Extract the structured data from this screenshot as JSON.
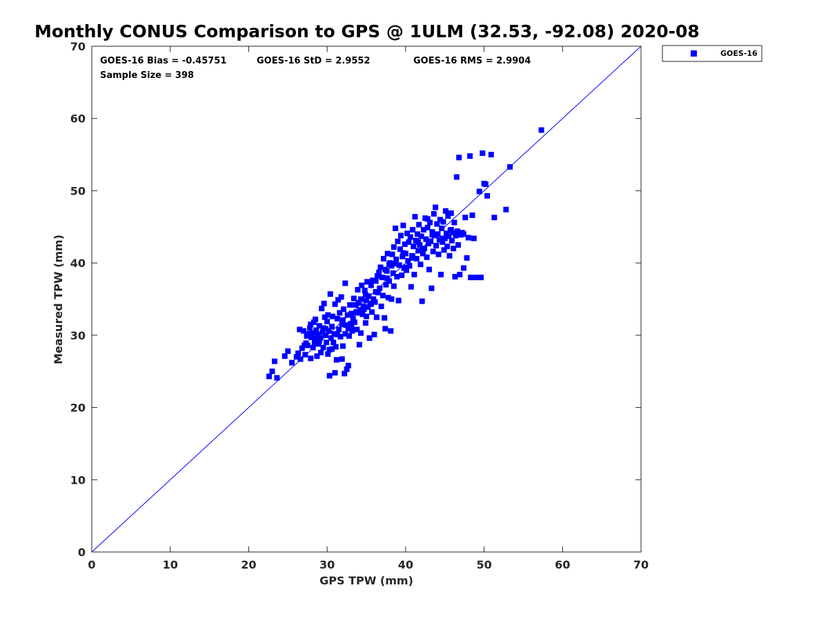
{
  "colors": {
    "series": "#0000ff",
    "axis": "#262626",
    "reference_line": "#0000ff"
  },
  "chart_data": {
    "type": "scatter",
    "title": "Monthly CONUS Comparison to GPS @ 1ULM (32.53, -92.08) 2020-08",
    "xlabel": "GPS TPW (mm)",
    "ylabel": "Measured TPW (mm)",
    "xlim": [
      0,
      70
    ],
    "ylim": [
      0,
      70
    ],
    "xticks": [
      "0",
      "10",
      "20",
      "30",
      "40",
      "50",
      "60",
      "70"
    ],
    "yticks": [
      "0",
      "10",
      "20",
      "30",
      "40",
      "50",
      "60",
      "70"
    ],
    "grid": false,
    "legend_position": "top-right outside",
    "reference_line": {
      "type": "one-to-one",
      "from": [
        0,
        0
      ],
      "to": [
        70,
        70
      ]
    },
    "stats": {
      "bias": "GOES-16 Bias = -0.45751",
      "std": "GOES-16 StD = 2.9552",
      "rms": "GOES-16 RMS = 2.9904",
      "sample_size": "Sample Size = 398"
    },
    "series": [
      {
        "name": "GOES-16",
        "marker": "square",
        "points": [
          [
            22.6,
            24.3
          ],
          [
            23.0,
            25.0
          ],
          [
            23.3,
            26.4
          ],
          [
            23.6,
            24.1
          ],
          [
            24.6,
            27.1
          ],
          [
            25.0,
            27.8
          ],
          [
            25.5,
            26.2
          ],
          [
            26.1,
            27.0
          ],
          [
            26.3,
            27.5
          ],
          [
            26.5,
            30.8
          ],
          [
            26.6,
            26.7
          ],
          [
            26.8,
            28.2
          ],
          [
            27.0,
            30.6
          ],
          [
            27.1,
            28.6
          ],
          [
            27.2,
            27.3
          ],
          [
            27.4,
            29.9
          ],
          [
            27.5,
            28.6
          ],
          [
            27.6,
            30.2
          ],
          [
            27.8,
            31.0
          ],
          [
            27.9,
            31.5
          ],
          [
            27.9,
            26.8
          ],
          [
            28.0,
            29.7
          ],
          [
            28.1,
            30.3
          ],
          [
            28.2,
            28.3
          ],
          [
            28.3,
            31.8
          ],
          [
            28.4,
            29.0
          ],
          [
            28.5,
            32.2
          ],
          [
            28.6,
            30.7
          ],
          [
            28.7,
            27.1
          ],
          [
            28.8,
            30.1
          ],
          [
            28.9,
            28.8
          ],
          [
            29.0,
            31.3
          ],
          [
            29.1,
            29.6
          ],
          [
            29.2,
            27.6
          ],
          [
            29.3,
            33.7
          ],
          [
            29.4,
            30.4
          ],
          [
            29.5,
            31.0
          ],
          [
            29.5,
            28.3
          ],
          [
            29.6,
            34.4
          ],
          [
            29.7,
            32.5
          ],
          [
            29.8,
            30.0
          ],
          [
            29.9,
            29.0
          ],
          [
            30.0,
            31.9
          ],
          [
            30.1,
            27.4
          ],
          [
            30.1,
            32.8
          ],
          [
            30.2,
            30.6
          ],
          [
            30.3,
            28.0
          ],
          [
            30.3,
            24.4
          ],
          [
            30.4,
            35.7
          ],
          [
            30.5,
            29.6
          ],
          [
            30.6,
            31.2
          ],
          [
            30.7,
            32.6
          ],
          [
            30.8,
            29.0
          ],
          [
            30.9,
            30.2
          ],
          [
            31.0,
            34.3
          ],
          [
            31.0,
            24.8
          ],
          [
            31.1,
            28.4
          ],
          [
            31.2,
            26.6
          ],
          [
            31.3,
            32.3
          ],
          [
            31.4,
            34.9
          ],
          [
            31.5,
            30.8
          ],
          [
            31.6,
            33.1
          ],
          [
            31.7,
            29.8
          ],
          [
            31.8,
            35.3
          ],
          [
            31.9,
            26.7
          ],
          [
            31.9,
            31.5
          ],
          [
            32.0,
            28.5
          ],
          [
            32.1,
            33.6
          ],
          [
            32.2,
            24.7
          ],
          [
            32.3,
            37.2
          ],
          [
            32.3,
            30.2
          ],
          [
            32.4,
            31.4
          ],
          [
            32.5,
            25.3
          ],
          [
            32.6,
            32.8
          ],
          [
            32.7,
            30.9
          ],
          [
            32.7,
            25.8
          ],
          [
            32.8,
            29.9
          ],
          [
            32.9,
            34.2
          ],
          [
            33.0,
            31.6
          ],
          [
            33.1,
            33.0
          ],
          [
            33.2,
            30.6
          ],
          [
            33.3,
            32.3
          ],
          [
            33.4,
            35.1
          ],
          [
            33.5,
            31.8
          ],
          [
            33.6,
            34.2
          ],
          [
            33.7,
            33.2
          ],
          [
            33.8,
            30.8
          ],
          [
            33.9,
            36.3
          ],
          [
            34.0,
            34.5
          ],
          [
            34.1,
            28.7
          ],
          [
            34.2,
            33.5
          ],
          [
            34.3,
            35.0
          ],
          [
            34.3,
            30.3
          ],
          [
            34.4,
            36.9
          ],
          [
            34.5,
            32.9
          ],
          [
            34.6,
            34.0
          ],
          [
            34.7,
            33.6
          ],
          [
            34.8,
            36.2
          ],
          [
            34.9,
            31.7
          ],
          [
            35.0,
            34.8
          ],
          [
            35.0,
            32.6
          ],
          [
            35.1,
            37.4
          ],
          [
            35.2,
            33.9
          ],
          [
            35.3,
            35.4
          ],
          [
            35.4,
            29.6
          ],
          [
            35.5,
            34.4
          ],
          [
            35.6,
            36.9
          ],
          [
            35.7,
            33.2
          ],
          [
            35.8,
            37.6
          ],
          [
            35.9,
            35.0
          ],
          [
            36.0,
            30.1
          ],
          [
            36.1,
            34.6
          ],
          [
            36.2,
            37.5
          ],
          [
            36.3,
            32.5
          ],
          [
            36.4,
            38.2
          ],
          [
            36.5,
            35.9
          ],
          [
            36.6,
            38.7
          ],
          [
            36.7,
            36.5
          ],
          [
            36.8,
            39.4
          ],
          [
            36.9,
            34.0
          ],
          [
            37.0,
            38.0
          ],
          [
            37.1,
            35.5
          ],
          [
            37.2,
            40.6
          ],
          [
            37.3,
            32.4
          ],
          [
            37.4,
            39.1
          ],
          [
            37.4,
            30.9
          ],
          [
            37.5,
            37.0
          ],
          [
            37.6,
            38.9
          ],
          [
            37.7,
            41.3
          ],
          [
            37.8,
            35.2
          ],
          [
            37.9,
            37.5
          ],
          [
            38.0,
            40.0
          ],
          [
            38.1,
            30.6
          ],
          [
            38.2,
            39.6
          ],
          [
            38.2,
            35.0
          ],
          [
            38.3,
            41.2
          ],
          [
            38.4,
            38.6
          ],
          [
            38.5,
            42.2
          ],
          [
            38.6,
            39.9
          ],
          [
            38.7,
            44.8
          ],
          [
            38.8,
            40.5
          ],
          [
            38.9,
            38.1
          ],
          [
            39.0,
            43.0
          ],
          [
            39.1,
            34.8
          ],
          [
            39.2,
            39.7
          ],
          [
            39.3,
            41.9
          ],
          [
            39.4,
            43.8
          ],
          [
            39.5,
            38.3
          ],
          [
            39.6,
            40.9
          ],
          [
            39.7,
            45.2
          ],
          [
            39.8,
            39.3
          ],
          [
            39.9,
            42.6
          ],
          [
            40.0,
            41.3
          ],
          [
            40.1,
            39.0
          ],
          [
            40.2,
            44.1
          ],
          [
            40.3,
            40.3
          ],
          [
            40.4,
            42.9
          ],
          [
            40.5,
            39.6
          ],
          [
            40.6,
            43.6
          ],
          [
            40.7,
            36.7
          ],
          [
            40.8,
            41.0
          ],
          [
            40.9,
            44.6
          ],
          [
            41.0,
            42.3
          ],
          [
            41.1,
            38.4
          ],
          [
            41.2,
            46.4
          ],
          [
            41.3,
            43.1
          ],
          [
            41.4,
            40.6
          ],
          [
            41.5,
            44.0
          ],
          [
            41.6,
            41.7
          ],
          [
            41.7,
            45.3
          ],
          [
            41.8,
            42.5
          ],
          [
            41.9,
            39.8
          ],
          [
            42.0,
            43.7
          ],
          [
            42.1,
            34.7
          ],
          [
            42.2,
            41.3
          ],
          [
            42.3,
            44.6
          ],
          [
            42.4,
            42.0
          ],
          [
            42.5,
            46.2
          ],
          [
            42.6,
            43.3
          ],
          [
            42.7,
            40.8
          ],
          [
            42.8,
            44.9
          ],
          [
            42.9,
            42.7
          ],
          [
            43.0,
            39.1
          ],
          [
            43.1,
            45.6
          ],
          [
            43.2,
            43.0
          ],
          [
            43.3,
            36.5
          ],
          [
            43.4,
            44.3
          ],
          [
            43.5,
            41.6
          ],
          [
            43.6,
            46.8
          ],
          [
            43.7,
            43.8
          ],
          [
            43.8,
            47.7
          ],
          [
            43.9,
            42.4
          ],
          [
            44.0,
            45.4
          ],
          [
            44.1,
            44.0
          ],
          [
            44.2,
            41.2
          ],
          [
            44.3,
            43.2
          ],
          [
            44.4,
            46.0
          ],
          [
            44.5,
            38.4
          ],
          [
            44.6,
            44.8
          ],
          [
            44.7,
            42.9
          ],
          [
            44.8,
            45.7
          ],
          [
            44.9,
            41.8
          ],
          [
            45.0,
            43.4
          ],
          [
            45.1,
            47.2
          ],
          [
            45.2,
            44.1
          ],
          [
            45.3,
            42.3
          ],
          [
            45.4,
            46.5
          ],
          [
            45.5,
            43.7
          ],
          [
            45.6,
            41.0
          ],
          [
            45.7,
            44.5
          ],
          [
            45.8,
            46.9
          ],
          [
            45.9,
            43.1
          ],
          [
            46.0,
            44.2
          ],
          [
            46.1,
            42.0
          ],
          [
            46.2,
            45.6
          ],
          [
            46.3,
            38.1
          ],
          [
            46.4,
            43.8
          ],
          [
            46.5,
            51.9
          ],
          [
            46.6,
            44.4
          ],
          [
            46.7,
            42.5
          ],
          [
            46.8,
            54.6
          ],
          [
            46.9,
            38.4
          ],
          [
            47.0,
            43.9
          ],
          [
            47.2,
            44.2
          ],
          [
            47.4,
            39.3
          ],
          [
            47.6,
            46.3
          ],
          [
            47.8,
            40.7
          ],
          [
            48.0,
            43.5
          ],
          [
            48.2,
            54.8
          ],
          [
            48.3,
            38.0
          ],
          [
            48.5,
            46.6
          ],
          [
            48.7,
            43.4
          ],
          [
            49.0,
            38.0
          ],
          [
            49.4,
            49.9
          ],
          [
            49.6,
            38.0
          ],
          [
            49.8,
            55.2
          ],
          [
            50.0,
            51.0
          ],
          [
            50.2,
            50.9
          ],
          [
            50.4,
            49.3
          ],
          [
            50.9,
            55.0
          ],
          [
            51.3,
            46.3
          ],
          [
            52.8,
            47.4
          ],
          [
            53.3,
            53.3
          ],
          [
            57.3,
            58.4
          ],
          [
            27.3,
            28.9
          ],
          [
            28.6,
            29.5
          ],
          [
            29.8,
            30.9
          ],
          [
            31.3,
            30.1
          ],
          [
            33.1,
            31.3
          ],
          [
            34.9,
            35.6
          ],
          [
            36.2,
            36.0
          ],
          [
            37.9,
            39.8
          ],
          [
            39.7,
            41.4
          ],
          [
            41.6,
            42.9
          ],
          [
            43.4,
            43.9
          ],
          [
            45.8,
            44.6
          ],
          [
            47.4,
            44.0
          ],
          [
            42.8,
            46.1
          ],
          [
            40.9,
            40.7
          ],
          [
            38.5,
            36.8
          ],
          [
            29.0,
            29.2
          ],
          [
            30.6,
            28.1
          ],
          [
            32.0,
            32.1
          ],
          [
            33.8,
            33.1
          ],
          [
            35.6,
            34.3
          ],
          [
            37.6,
            37.9
          ],
          [
            40.0,
            39.4
          ],
          [
            42.2,
            41.9
          ],
          [
            44.8,
            43.4
          ],
          [
            46.9,
            44.0
          ]
        ]
      }
    ]
  }
}
